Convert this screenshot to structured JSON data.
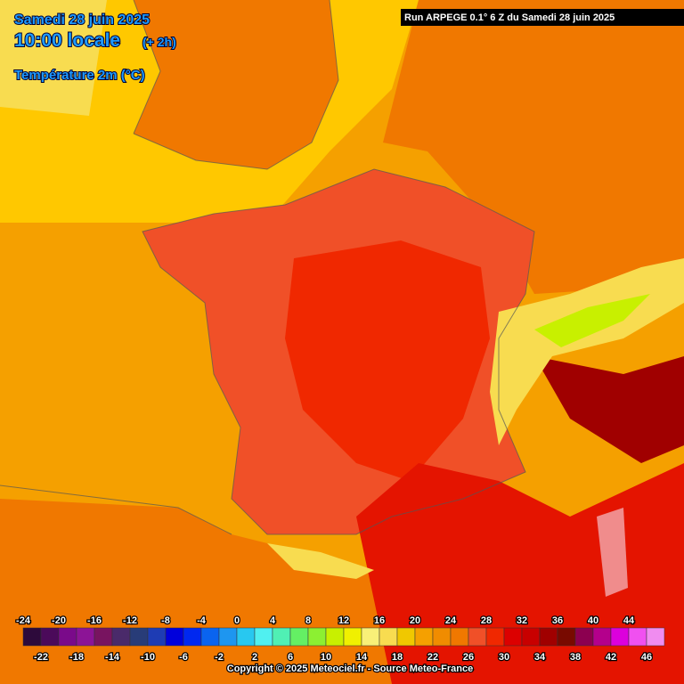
{
  "header": {
    "date": "Samedi 28 juin 2025",
    "time": "10:00 locale",
    "offset": "(+ 2h)",
    "parameter": "Température 2m (°C)"
  },
  "run_info": "Run ARPEGE 0.1° 6 Z du Samedi 28 juin 2025",
  "legend": {
    "values": [
      -24,
      -22,
      -20,
      -18,
      -16,
      -14,
      -12,
      -10,
      -8,
      -6,
      -4,
      -2,
      0,
      2,
      4,
      6,
      8,
      10,
      12,
      14,
      16,
      18,
      20,
      22,
      24,
      26,
      28,
      30,
      32,
      34,
      36,
      38,
      40,
      42,
      44,
      46
    ],
    "colors": [
      "#2d0a3b",
      "#4b0a5a",
      "#7a0a8a",
      "#8c1496",
      "#781460",
      "#4a2a6a",
      "#283c78",
      "#1e3cb4",
      "#0000dc",
      "#0028f0",
      "#0a64f0",
      "#1e96f0",
      "#28c8f0",
      "#50f0f0",
      "#50f0b4",
      "#64f064",
      "#8cf032",
      "#c8f000",
      "#f0f000",
      "#f8f078",
      "#f8dc50",
      "#f0c800",
      "#f5a000",
      "#f08c00",
      "#f07800",
      "#f05028",
      "#f02800",
      "#dc0000",
      "#c80000",
      "#a00000",
      "#780a00",
      "#8c0050",
      "#b4008c",
      "#dc00dc",
      "#f050f0",
      "#f08cf0"
    ]
  },
  "copyright": "Copyright © 2025 Meteociel.fr - Source Meteo-France"
}
